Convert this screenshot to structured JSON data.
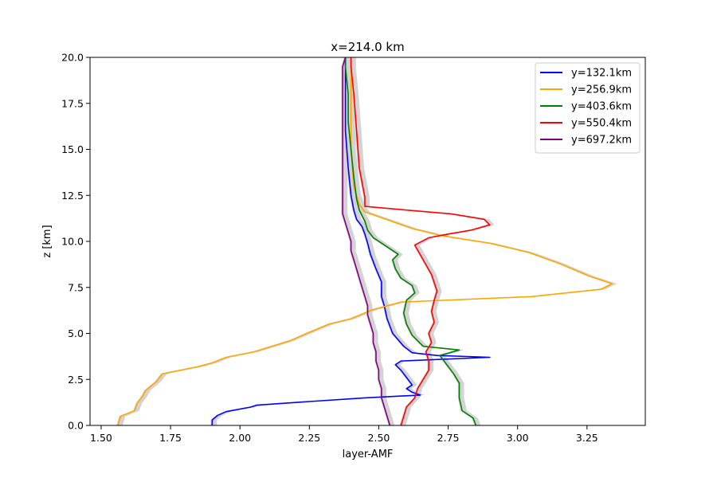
{
  "chart_data": {
    "type": "line",
    "title": "x=214.0 km",
    "xlabel": "layer-AMF",
    "ylabel": "z [km]",
    "xlim": [
      1.46,
      3.46
    ],
    "ylim": [
      0,
      20
    ],
    "x_ticks": [
      "1.50",
      "1.75",
      "2.00",
      "2.25",
      "2.50",
      "2.75",
      "3.00",
      "3.25"
    ],
    "y_ticks": [
      "0.0",
      "2.5",
      "5.0",
      "7.5",
      "10.0",
      "12.5",
      "15.0",
      "17.5",
      "20.0"
    ],
    "grid": false,
    "legend_position": "top-right",
    "uncertainty_band_color": "#d3d3d3",
    "series": [
      {
        "name": "y=132.1km",
        "color": "#0000ff",
        "points": [
          [
            1.9,
            0.0
          ],
          [
            1.9,
            0.3
          ],
          [
            1.92,
            0.55
          ],
          [
            1.95,
            0.75
          ],
          [
            2.04,
            1.0
          ],
          [
            2.06,
            1.1
          ],
          [
            2.25,
            1.3
          ],
          [
            2.45,
            1.5
          ],
          [
            2.65,
            1.65
          ],
          [
            2.62,
            1.8
          ],
          [
            2.6,
            2.0
          ],
          [
            2.62,
            2.2
          ],
          [
            2.6,
            2.6
          ],
          [
            2.58,
            3.0
          ],
          [
            2.56,
            3.3
          ],
          [
            2.58,
            3.5
          ],
          [
            2.9,
            3.7
          ],
          [
            2.71,
            3.8
          ],
          [
            2.62,
            3.95
          ],
          [
            2.59,
            4.3
          ],
          [
            2.55,
            5.0
          ],
          [
            2.53,
            5.8
          ],
          [
            2.52,
            6.5
          ],
          [
            2.51,
            7.0
          ],
          [
            2.51,
            7.8
          ],
          [
            2.49,
            8.5
          ],
          [
            2.47,
            9.3
          ],
          [
            2.46,
            9.9
          ],
          [
            2.45,
            10.4
          ],
          [
            2.44,
            10.8
          ],
          [
            2.42,
            11.2
          ],
          [
            2.41,
            11.7
          ],
          [
            2.4,
            12.5
          ],
          [
            2.39,
            14.0
          ],
          [
            2.38,
            16.0
          ],
          [
            2.38,
            18.0
          ],
          [
            2.38,
            19.5
          ],
          [
            2.38,
            20.0
          ]
        ]
      },
      {
        "name": "y=256.9km",
        "color": "#ffa500",
        "points": [
          [
            1.56,
            0.0
          ],
          [
            1.57,
            0.5
          ],
          [
            1.62,
            0.8
          ],
          [
            1.63,
            1.2
          ],
          [
            1.65,
            1.6
          ],
          [
            1.66,
            1.9
          ],
          [
            1.7,
            2.4
          ],
          [
            1.72,
            2.8
          ],
          [
            1.85,
            3.2
          ],
          [
            1.9,
            3.4
          ],
          [
            1.95,
            3.7
          ],
          [
            2.05,
            4.0
          ],
          [
            2.18,
            4.6
          ],
          [
            2.24,
            5.0
          ],
          [
            2.32,
            5.5
          ],
          [
            2.4,
            5.8
          ],
          [
            2.48,
            6.3
          ],
          [
            2.58,
            6.7
          ],
          [
            3.05,
            7.0
          ],
          [
            3.3,
            7.4
          ],
          [
            3.34,
            7.7
          ],
          [
            3.26,
            8.1
          ],
          [
            3.15,
            8.8
          ],
          [
            3.04,
            9.4
          ],
          [
            2.9,
            9.9
          ],
          [
            2.73,
            10.3
          ],
          [
            2.62,
            10.7
          ],
          [
            2.45,
            11.6
          ],
          [
            2.43,
            12.0
          ],
          [
            2.41,
            13.0
          ],
          [
            2.4,
            15.0
          ],
          [
            2.4,
            17.0
          ],
          [
            2.4,
            19.0
          ],
          [
            2.4,
            20.0
          ]
        ]
      },
      {
        "name": "y=403.6km",
        "color": "#008000",
        "points": [
          [
            2.85,
            0.0
          ],
          [
            2.84,
            0.4
          ],
          [
            2.8,
            0.8
          ],
          [
            2.79,
            1.5
          ],
          [
            2.79,
            2.3
          ],
          [
            2.77,
            2.8
          ],
          [
            2.74,
            3.4
          ],
          [
            2.72,
            3.8
          ],
          [
            2.79,
            4.1
          ],
          [
            2.66,
            4.3
          ],
          [
            2.62,
            4.9
          ],
          [
            2.6,
            5.5
          ],
          [
            2.59,
            6.1
          ],
          [
            2.6,
            6.8
          ],
          [
            2.63,
            7.2
          ],
          [
            2.62,
            7.6
          ],
          [
            2.58,
            8.0
          ],
          [
            2.56,
            8.5
          ],
          [
            2.55,
            9.0
          ],
          [
            2.57,
            9.3
          ],
          [
            2.52,
            9.8
          ],
          [
            2.48,
            10.2
          ],
          [
            2.46,
            10.6
          ],
          [
            2.45,
            11.1
          ],
          [
            2.43,
            11.7
          ],
          [
            2.42,
            12.3
          ],
          [
            2.41,
            13.5
          ],
          [
            2.4,
            15.0
          ],
          [
            2.39,
            16.5
          ],
          [
            2.39,
            18.0
          ],
          [
            2.38,
            19.5
          ],
          [
            2.38,
            20.0
          ]
        ]
      },
      {
        "name": "y=550.4km",
        "color": "#ff0000",
        "points": [
          [
            2.58,
            0.0
          ],
          [
            2.59,
            0.5
          ],
          [
            2.6,
            1.0
          ],
          [
            2.63,
            1.5
          ],
          [
            2.64,
            2.0
          ],
          [
            2.66,
            2.5
          ],
          [
            2.68,
            3.0
          ],
          [
            2.68,
            3.5
          ],
          [
            2.67,
            4.0
          ],
          [
            2.69,
            4.5
          ],
          [
            2.68,
            5.0
          ],
          [
            2.7,
            5.6
          ],
          [
            2.69,
            6.2
          ],
          [
            2.7,
            6.8
          ],
          [
            2.71,
            7.3
          ],
          [
            2.69,
            8.2
          ],
          [
            2.66,
            9.0
          ],
          [
            2.63,
            9.8
          ],
          [
            2.68,
            10.2
          ],
          [
            2.75,
            10.4
          ],
          [
            2.83,
            10.6
          ],
          [
            2.9,
            10.9
          ],
          [
            2.88,
            11.2
          ],
          [
            2.76,
            11.5
          ],
          [
            2.6,
            11.7
          ],
          [
            2.45,
            11.9
          ],
          [
            2.45,
            12.4
          ],
          [
            2.43,
            14.0
          ],
          [
            2.42,
            16.0
          ],
          [
            2.41,
            18.0
          ],
          [
            2.4,
            19.5
          ],
          [
            2.4,
            20.0
          ]
        ]
      },
      {
        "name": "y=697.2km",
        "color": "#800080",
        "points": [
          [
            2.54,
            0.0
          ],
          [
            2.53,
            0.5
          ],
          [
            2.52,
            1.0
          ],
          [
            2.51,
            1.5
          ],
          [
            2.51,
            2.0
          ],
          [
            2.5,
            2.5
          ],
          [
            2.5,
            3.0
          ],
          [
            2.49,
            3.5
          ],
          [
            2.49,
            4.0
          ],
          [
            2.48,
            4.5
          ],
          [
            2.48,
            5.0
          ],
          [
            2.47,
            5.5
          ],
          [
            2.46,
            6.0
          ],
          [
            2.46,
            6.5
          ],
          [
            2.45,
            7.0
          ],
          [
            2.44,
            7.5
          ],
          [
            2.43,
            8.0
          ],
          [
            2.42,
            8.5
          ],
          [
            2.41,
            9.0
          ],
          [
            2.4,
            9.5
          ],
          [
            2.4,
            10.0
          ],
          [
            2.39,
            10.5
          ],
          [
            2.38,
            11.0
          ],
          [
            2.37,
            11.5
          ],
          [
            2.37,
            12.5
          ],
          [
            2.37,
            14.0
          ],
          [
            2.37,
            16.0
          ],
          [
            2.37,
            18.0
          ],
          [
            2.37,
            19.5
          ],
          [
            2.38,
            20.0
          ]
        ]
      }
    ]
  }
}
